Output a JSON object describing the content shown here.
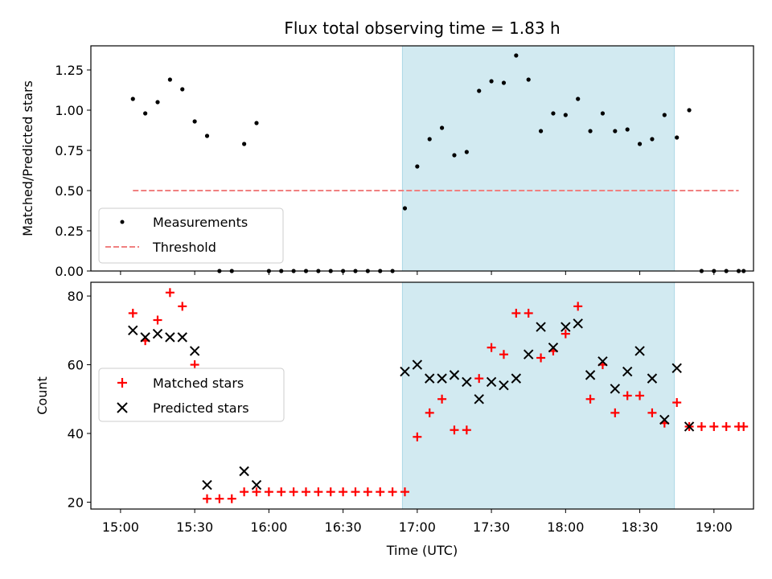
{
  "chart_data": [
    {
      "type": "scatter",
      "title": "Flux total observing time = 1.83 h",
      "xlabel": "",
      "ylabel": "Matched/Predicted stars",
      "ylim": [
        0,
        1.4
      ],
      "yticks": [
        0.0,
        0.25,
        0.5,
        0.75,
        1.0,
        1.25
      ],
      "ytick_labels": [
        "0.00",
        "0.25",
        "0.50",
        "0.75",
        "1.00",
        "1.25"
      ],
      "xlim_min": [
        -12,
        256
      ],
      "shaded_span_min": [
        114,
        224
      ],
      "shade_color": "#add8e6",
      "legend_position": "lower-left",
      "series": [
        {
          "name": "Measurements",
          "color": "#000000",
          "marker": "dot",
          "x_minutes_since_15": [
            5,
            10,
            15,
            20,
            25,
            30,
            35,
            40,
            45,
            50,
            55,
            60,
            65,
            70,
            75,
            80,
            85,
            90,
            95,
            100,
            105,
            110,
            115,
            120,
            125,
            130,
            135,
            140,
            145,
            150,
            155,
            160,
            165,
            170,
            175,
            180,
            185,
            190,
            195,
            200,
            205,
            210,
            215,
            220,
            225,
            230,
            235,
            240,
            245,
            250,
            252
          ],
          "y": [
            1.07,
            0.98,
            1.05,
            1.19,
            1.13,
            0.93,
            0.84,
            0.0,
            0.0,
            0.79,
            0.92,
            0.0,
            0.0,
            0.0,
            0.0,
            0.0,
            0.0,
            0.0,
            0.0,
            0.0,
            0.0,
            0.0,
            0.39,
            0.65,
            0.82,
            0.89,
            0.72,
            0.74,
            1.12,
            1.18,
            1.17,
            1.34,
            1.19,
            0.87,
            0.98,
            0.97,
            1.07,
            0.87,
            0.98,
            0.87,
            0.88,
            0.79,
            0.82,
            0.97,
            0.83,
            1.0,
            0.0,
            0.0,
            0.0,
            0.0,
            0.0
          ]
        },
        {
          "name": "Threshold",
          "color": "#f08080",
          "style": "dashed",
          "x_minutes_since_15": [
            5,
            250
          ],
          "y": [
            0.5,
            0.5
          ]
        }
      ]
    },
    {
      "type": "scatter",
      "title": "",
      "xlabel": "Time (UTC)",
      "ylabel": "Count",
      "ylim": [
        18,
        84
      ],
      "yticks": [
        20,
        40,
        60,
        80
      ],
      "ytick_labels": [
        "20",
        "40",
        "60",
        "80"
      ],
      "xticks_min": [
        0,
        30,
        60,
        90,
        120,
        150,
        180,
        210,
        240
      ],
      "xtick_labels": [
        "15:00",
        "15:30",
        "16:00",
        "16:30",
        "17:00",
        "17:30",
        "18:00",
        "18:30",
        "19:00"
      ],
      "xlim_min": [
        -12,
        256
      ],
      "shaded_span_min": [
        114,
        224
      ],
      "shade_color": "#add8e6",
      "legend_position": "center-left",
      "series": [
        {
          "name": "Matched stars",
          "color": "#ff0000",
          "marker": "plus",
          "x_minutes_since_15": [
            5,
            10,
            15,
            20,
            25,
            30,
            35,
            40,
            45,
            50,
            55,
            60,
            65,
            70,
            75,
            80,
            85,
            90,
            95,
            100,
            105,
            110,
            115,
            120,
            125,
            130,
            135,
            140,
            145,
            150,
            155,
            160,
            165,
            170,
            175,
            180,
            185,
            190,
            195,
            200,
            205,
            210,
            215,
            220,
            225,
            230,
            235,
            240,
            245,
            250,
            252
          ],
          "y": [
            75,
            67,
            73,
            81,
            77,
            60,
            21,
            21,
            21,
            23,
            23,
            23,
            23,
            23,
            23,
            23,
            23,
            23,
            23,
            23,
            23,
            23,
            23,
            39,
            46,
            50,
            41,
            41,
            56,
            65,
            63,
            75,
            75,
            62,
            64,
            69,
            77,
            50,
            60,
            46,
            51,
            51,
            46,
            43,
            49,
            42,
            42,
            42,
            42,
            42,
            42
          ]
        },
        {
          "name": "Predicted stars",
          "color": "#000000",
          "marker": "x",
          "x_minutes_since_15": [
            5,
            10,
            15,
            20,
            25,
            30,
            35,
            50,
            55,
            115,
            120,
            125,
            130,
            135,
            140,
            145,
            150,
            155,
            160,
            165,
            170,
            175,
            180,
            185,
            190,
            195,
            200,
            205,
            210,
            215,
            220,
            225,
            230
          ],
          "y": [
            70,
            68,
            69,
            68,
            68,
            64,
            25,
            29,
            25,
            58,
            60,
            56,
            56,
            57,
            55,
            50,
            55,
            54,
            56,
            63,
            71,
            65,
            71,
            72,
            57,
            61,
            53,
            58,
            64,
            56,
            44,
            59,
            42
          ]
        }
      ]
    }
  ]
}
